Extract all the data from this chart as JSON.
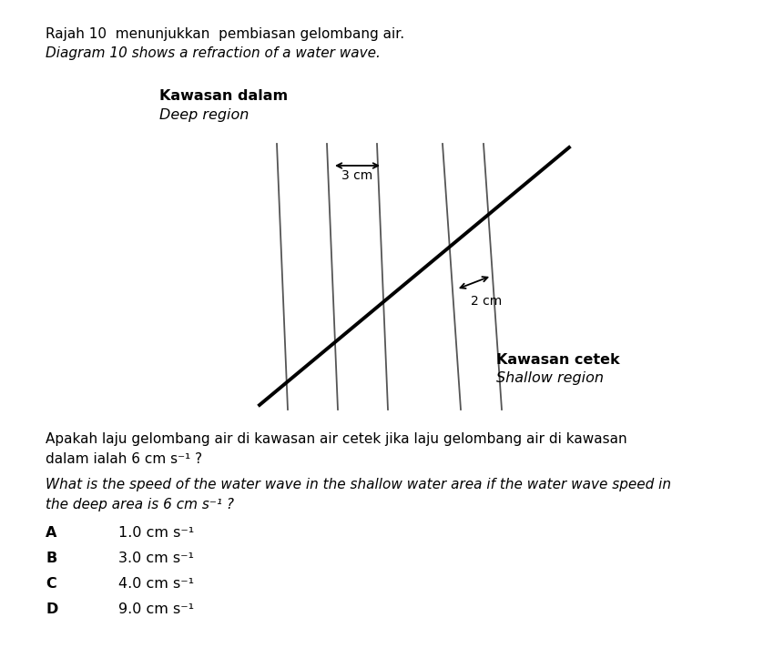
{
  "title_line1": "Rajah 10  menunjukkan  pembiasan gelombang air.",
  "title_line2": "Diagram 10 shows a refraction of a water wave.",
  "label_deep_bm": "Kawasan dalam",
  "label_deep_en": "Deep region",
  "label_shallow_bm": "Kawasan cetek",
  "label_shallow_en": "Shallow region",
  "wavelength_deep_label": "3 cm",
  "wavelength_shallow_label": "2 cm",
  "question_line1": "Apakah laju gelombang air di kawasan air cetek jika laju gelombang air di kawasan",
  "question_line2": "dalam ialah 6 cm s⁻¹ ?",
  "question_line3": "What is the speed of the water wave in the shallow water area if the water wave speed in",
  "question_line4": "the deep area is 6 cm s⁻¹ ?",
  "options": [
    {
      "letter": "A",
      "text": "1.0 cm s⁻¹"
    },
    {
      "letter": "B",
      "text": "3.0 cm s⁻¹"
    },
    {
      "letter": "C",
      "text": "4.0 cm s⁻¹"
    },
    {
      "letter": "D",
      "text": "9.0 cm s⁻¹"
    }
  ],
  "bg_color": "#ffffff",
  "text_color": "#000000",
  "wavefront_color": "#555555",
  "refraction_line_color": "#000000",
  "fig_width": 8.61,
  "fig_height": 7.23,
  "dpi": 100
}
